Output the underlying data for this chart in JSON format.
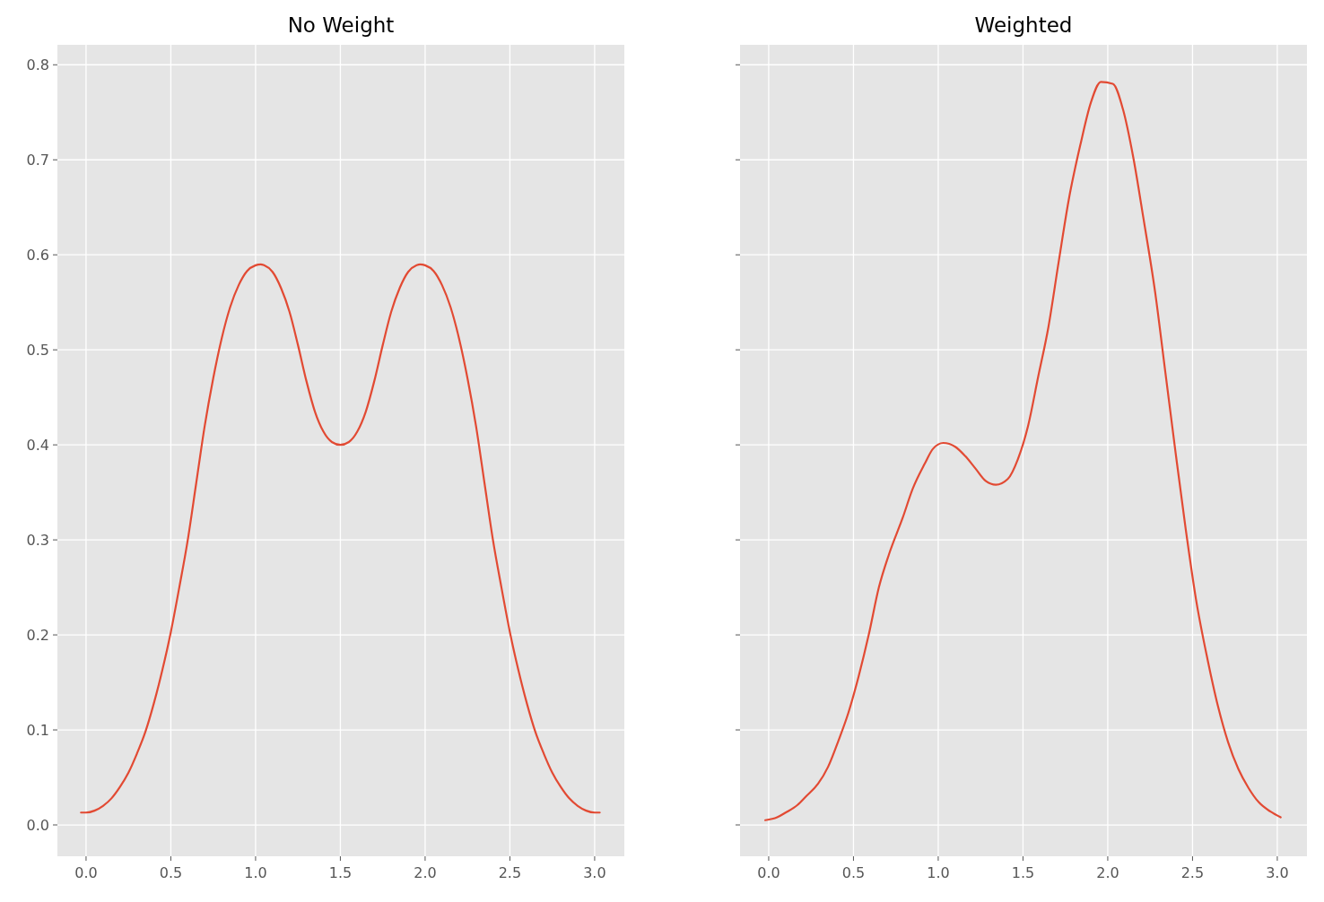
{
  "chart_data": [
    {
      "type": "line",
      "title": "No Weight",
      "xlim": [
        -0.169,
        3.175
      ],
      "ylim": [
        -0.033,
        0.821
      ],
      "xticks": [
        {
          "value": 0,
          "label": "0.0"
        },
        {
          "value": 0.5,
          "label": "0.5"
        },
        {
          "value": 1,
          "label": "1.0"
        },
        {
          "value": 1.5,
          "label": "1.5"
        },
        {
          "value": 2,
          "label": "2.0"
        },
        {
          "value": 2.5,
          "label": "2.5"
        },
        {
          "value": 3,
          "label": "3.0"
        }
      ],
      "yticks": [
        {
          "value": 0,
          "label": "0.0"
        },
        {
          "value": 0.1,
          "label": "0.1"
        },
        {
          "value": 0.2,
          "label": "0.2"
        },
        {
          "value": 0.3,
          "label": "0.3"
        },
        {
          "value": 0.4,
          "label": "0.4"
        },
        {
          "value": 0.5,
          "label": "0.5"
        },
        {
          "value": 0.6,
          "label": "0.6"
        },
        {
          "value": 0.7,
          "label": "0.7"
        },
        {
          "value": 0.8,
          "label": "0.8"
        }
      ],
      "grid": true,
      "series": [
        {
          "color": "#e24a33",
          "x": [
            -0.03,
            0.0,
            0.05,
            0.1,
            0.15,
            0.2,
            0.25,
            0.3,
            0.35,
            0.4,
            0.45,
            0.5,
            0.55,
            0.6,
            0.65,
            0.7,
            0.75,
            0.8,
            0.85,
            0.9,
            0.95,
            1.0,
            1.03,
            1.05,
            1.1,
            1.15,
            1.2,
            1.25,
            1.3,
            1.35,
            1.4,
            1.45,
            1.5,
            1.55,
            1.6,
            1.65,
            1.7,
            1.75,
            1.8,
            1.85,
            1.9,
            1.95,
            1.97,
            2.0,
            2.05,
            2.1,
            2.15,
            2.2,
            2.25,
            2.3,
            2.35,
            2.4,
            2.45,
            2.5,
            2.55,
            2.6,
            2.65,
            2.7,
            2.75,
            2.8,
            2.85,
            2.9,
            2.95,
            3.0,
            3.03
          ],
          "values": [
            0.013,
            0.013,
            0.015,
            0.02,
            0.028,
            0.04,
            0.055,
            0.075,
            0.098,
            0.128,
            0.163,
            0.203,
            0.25,
            0.3,
            0.36,
            0.42,
            0.47,
            0.512,
            0.545,
            0.568,
            0.583,
            0.589,
            0.59,
            0.589,
            0.582,
            0.565,
            0.54,
            0.505,
            0.467,
            0.435,
            0.414,
            0.403,
            0.4,
            0.403,
            0.414,
            0.435,
            0.467,
            0.505,
            0.54,
            0.565,
            0.582,
            0.589,
            0.59,
            0.589,
            0.583,
            0.568,
            0.545,
            0.512,
            0.47,
            0.42,
            0.36,
            0.3,
            0.25,
            0.203,
            0.163,
            0.128,
            0.098,
            0.075,
            0.055,
            0.04,
            0.028,
            0.02,
            0.015,
            0.013,
            0.013
          ]
        }
      ]
    },
    {
      "type": "line",
      "title": "Weighted",
      "xlim": [
        -0.169,
        3.175
      ],
      "ylim": [
        -0.033,
        0.821
      ],
      "tick_labels": "x",
      "xticks": [
        {
          "value": 0,
          "label": "0.0"
        },
        {
          "value": 0.5,
          "label": "0.5"
        },
        {
          "value": 1,
          "label": "1.0"
        },
        {
          "value": 1.5,
          "label": "1.5"
        },
        {
          "value": 2,
          "label": "2.0"
        },
        {
          "value": 2.5,
          "label": "2.5"
        },
        {
          "value": 3,
          "label": "3.0"
        }
      ],
      "yticks": [
        {
          "value": 0,
          "label": null
        },
        {
          "value": 0.1,
          "label": null
        },
        {
          "value": 0.2,
          "label": null
        },
        {
          "value": 0.3,
          "label": null
        },
        {
          "value": 0.4,
          "label": null
        },
        {
          "value": 0.5,
          "label": null
        },
        {
          "value": 0.6,
          "label": null
        },
        {
          "value": 0.7,
          "label": null
        },
        {
          "value": 0.8,
          "label": null
        }
      ],
      "grid": true,
      "series": [
        {
          "color": "#e24a33",
          "x": [
            -0.02,
            0.05,
            0.1,
            0.17,
            0.22,
            0.29,
            0.35,
            0.41,
            0.47,
            0.53,
            0.59,
            0.65,
            0.71,
            0.79,
            0.85,
            0.92,
            0.97,
            1.03,
            1.1,
            1.16,
            1.22,
            1.28,
            1.34,
            1.41,
            1.47,
            1.53,
            1.59,
            1.65,
            1.71,
            1.77,
            1.84,
            1.9,
            1.96,
            2.03,
            2.09,
            2.15,
            2.21,
            2.28,
            2.34,
            2.4,
            2.46,
            2.52,
            2.59,
            2.65,
            2.71,
            2.77,
            2.83,
            2.89,
            2.96,
            3.02
          ],
          "values": [
            0.005,
            0.008,
            0.013,
            0.021,
            0.03,
            0.043,
            0.061,
            0.088,
            0.118,
            0.156,
            0.2,
            0.25,
            0.285,
            0.323,
            0.354,
            0.38,
            0.396,
            0.402,
            0.398,
            0.388,
            0.375,
            0.362,
            0.358,
            0.364,
            0.385,
            0.42,
            0.472,
            0.524,
            0.592,
            0.658,
            0.717,
            0.76,
            0.782,
            0.78,
            0.753,
            0.703,
            0.639,
            0.56,
            0.476,
            0.392,
            0.311,
            0.238,
            0.173,
            0.125,
            0.087,
            0.059,
            0.039,
            0.024,
            0.014,
            0.008
          ]
        }
      ]
    }
  ]
}
